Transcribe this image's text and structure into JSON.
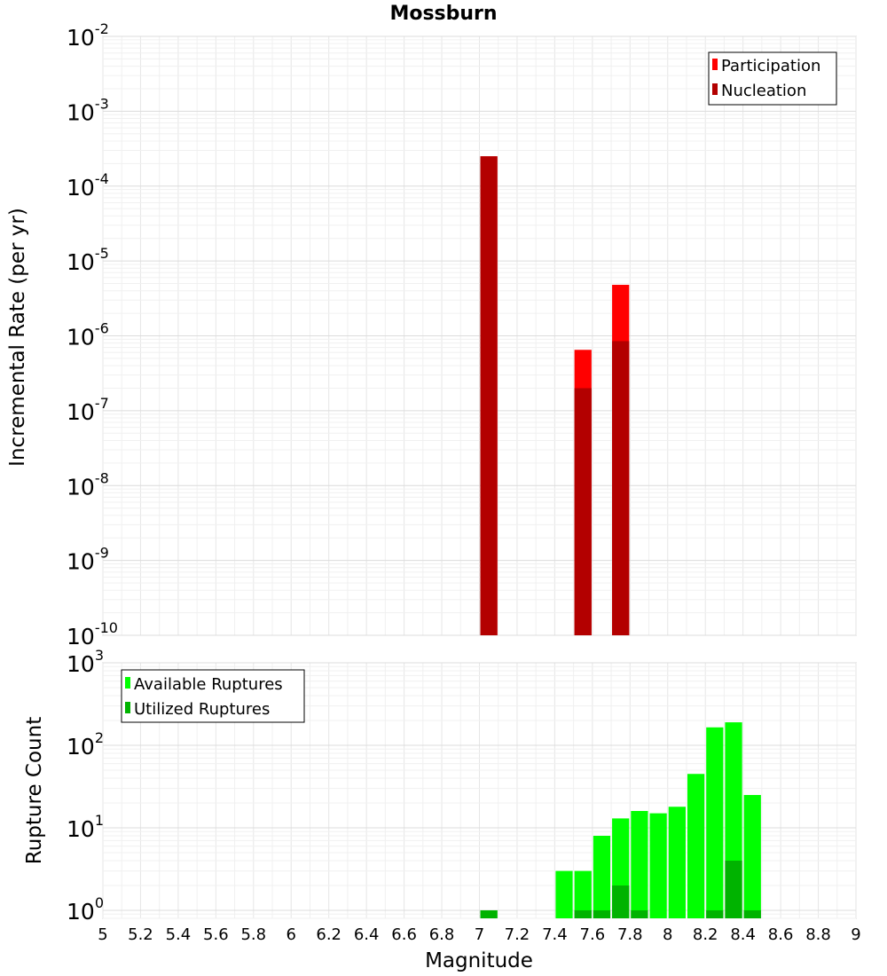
{
  "chart_data": [
    {
      "type": "bar",
      "title": "Mossburn",
      "ylabel": "Incremental Rate (per yr)",
      "xlabel": "",
      "yscale": "log",
      "ylim": [
        1e-10,
        0.01
      ],
      "xlim": [
        5,
        9
      ],
      "y_tick_exponents": [
        -10,
        -9,
        -8,
        -7,
        -6,
        -5,
        -4,
        -3,
        -2
      ],
      "legend_position": "top-right",
      "grid": true,
      "bin_width": 0.1,
      "series": [
        {
          "name": "Participation",
          "color": "#ff0000",
          "x": [
            7.05,
            7.55,
            7.75
          ],
          "values": [
            0.00025,
            6.5e-07,
            4.8e-06
          ]
        },
        {
          "name": "Nucleation",
          "color": "#b30000",
          "x": [
            7.05,
            7.55,
            7.75
          ],
          "values": [
            0.00025,
            2e-07,
            8.5e-07
          ]
        }
      ]
    },
    {
      "type": "bar",
      "title": "",
      "ylabel": "Rupture Count",
      "xlabel": "Magnitude",
      "yscale": "log",
      "ylim": [
        0.8,
        1000
      ],
      "xlim": [
        5,
        9
      ],
      "y_tick_exponents": [
        0,
        1,
        2,
        3
      ],
      "x_ticks": [
        "5",
        "5.2",
        "5.4",
        "5.6",
        "5.8",
        "6",
        "6.2",
        "6.4",
        "6.6",
        "6.8",
        "7",
        "7.2",
        "7.4",
        "7.6",
        "7.8",
        "8",
        "8.2",
        "8.4",
        "8.6",
        "8.8",
        "9"
      ],
      "legend_position": "top-left",
      "grid": true,
      "bin_width": 0.1,
      "series": [
        {
          "name": "Available Ruptures",
          "color": "#00ff00",
          "x": [
            7.05,
            7.45,
            7.55,
            7.65,
            7.75,
            7.85,
            7.95,
            8.05,
            8.15,
            8.25,
            8.35,
            8.45
          ],
          "values": [
            1,
            3,
            3,
            8,
            13,
            16,
            15,
            18,
            45,
            165,
            190,
            25
          ]
        },
        {
          "name": "Utilized Ruptures",
          "color": "#00b300",
          "x": [
            7.05,
            7.55,
            7.65,
            7.75,
            7.85,
            8.25,
            8.35,
            8.45
          ],
          "values": [
            1,
            1,
            1,
            2,
            1,
            1,
            4,
            1
          ]
        }
      ]
    }
  ]
}
